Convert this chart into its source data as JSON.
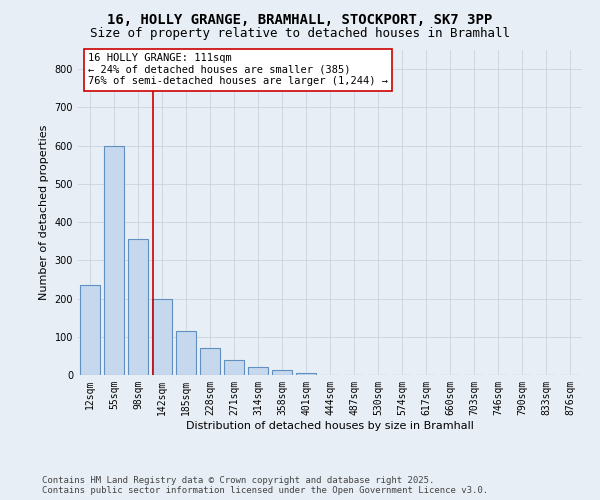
{
  "title_line1": "16, HOLLY GRANGE, BRAMHALL, STOCKPORT, SK7 3PP",
  "title_line2": "Size of property relative to detached houses in Bramhall",
  "xlabel": "Distribution of detached houses by size in Bramhall",
  "ylabel": "Number of detached properties",
  "bar_labels": [
    "12sqm",
    "55sqm",
    "98sqm",
    "142sqm",
    "185sqm",
    "228sqm",
    "271sqm",
    "314sqm",
    "358sqm",
    "401sqm",
    "444sqm",
    "487sqm",
    "530sqm",
    "574sqm",
    "617sqm",
    "660sqm",
    "703sqm",
    "746sqm",
    "790sqm",
    "833sqm",
    "876sqm"
  ],
  "bar_values": [
    235,
    600,
    355,
    200,
    115,
    70,
    40,
    20,
    12,
    5,
    0,
    0,
    0,
    0,
    0,
    0,
    0,
    0,
    0,
    0,
    0
  ],
  "bar_color": "#c5d8ee",
  "bar_edge_color": "#6090c0",
  "vline_x": 2.62,
  "vline_color": "#cc0000",
  "annotation_text": "16 HOLLY GRANGE: 111sqm\n← 24% of detached houses are smaller (385)\n76% of semi-detached houses are larger (1,244) →",
  "annotation_box_color": "#ffffff",
  "annotation_box_edge": "#cc0000",
  "ylim": [
    0,
    850
  ],
  "yticks": [
    0,
    100,
    200,
    300,
    400,
    500,
    600,
    700,
    800
  ],
  "background_color": "#e8eef5",
  "plot_background": "#e8eef5",
  "footer_text": "Contains HM Land Registry data © Crown copyright and database right 2025.\nContains public sector information licensed under the Open Government Licence v3.0.",
  "title_fontsize": 10,
  "subtitle_fontsize": 9,
  "axis_label_fontsize": 8,
  "tick_fontsize": 7,
  "annotation_fontsize": 7.5,
  "footer_fontsize": 6.5,
  "grid_color": "#c8d4e0"
}
